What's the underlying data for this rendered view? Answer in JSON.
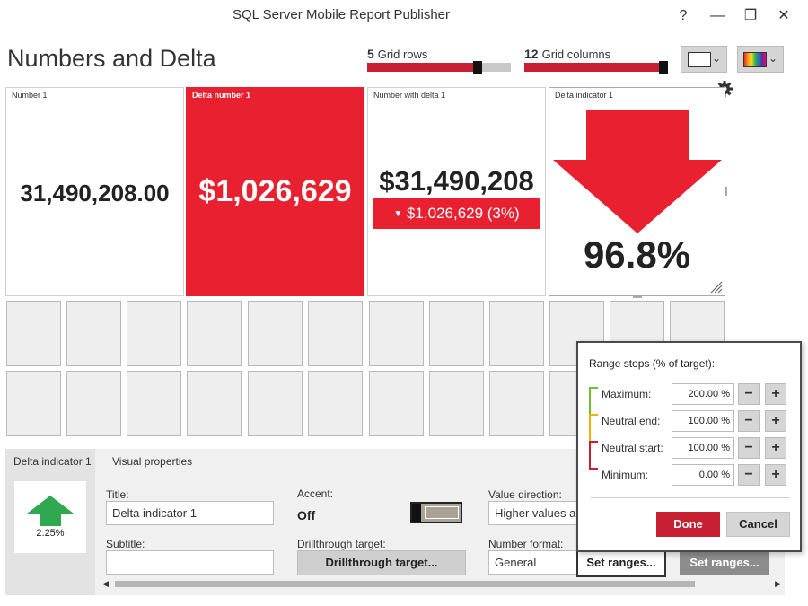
{
  "window": {
    "title": "SQL Server Mobile Report Publisher",
    "help": "?",
    "minimize": "—",
    "restore": "❐",
    "close": "✕"
  },
  "report": {
    "title": "Numbers and Delta"
  },
  "grid": {
    "rows_value": "5",
    "rows_label": "Grid rows",
    "rows_fraction": 0.8,
    "columns_value": "12",
    "columns_label": "Grid columns",
    "columns_fraction": 1.0
  },
  "toolbar": {
    "layout_icon": "layout-icon",
    "palette_icon": "color-palette-icon",
    "chevron": "⌄"
  },
  "tiles": {
    "number1": {
      "label": "Number 1",
      "value": "31,490,208.00"
    },
    "delta1": {
      "label": "Delta number 1",
      "value": "$1,026,629"
    },
    "numdelta": {
      "label": "Number with delta 1",
      "value": "$31,490,208",
      "delta": "$1,026,629 (3%)",
      "delta_arrow": "▼"
    },
    "indicator": {
      "label": "Delta indicator 1",
      "value": "96.8%",
      "direction": "down",
      "color": "#e8202f"
    }
  },
  "panel": {
    "side_title": "Delta indicator 1",
    "preview_value": "2.25%",
    "preview_direction": "up",
    "preview_color": "#2fa84f",
    "tab": "Visual properties",
    "title_label": "Title:",
    "title_value": "Delta indicator 1",
    "subtitle_label": "Subtitle:",
    "subtitle_value": "",
    "accent_label": "Accent:",
    "accent_value": "Off",
    "drill_label": "Drillthrough target:",
    "drill_button": "Drillthrough target...",
    "direction_label": "Value direction:",
    "direction_value": "Higher values are",
    "format_label": "Number format:",
    "format_value": "General",
    "set_ranges_1": "Set ranges...",
    "set_ranges_2": "Set ranges..."
  },
  "popup": {
    "heading": "Range stops (% of target):",
    "rows": [
      {
        "label": "Maximum:",
        "value": "200.00 %"
      },
      {
        "label": "Neutral end:",
        "value": "100.00 %"
      },
      {
        "label": "Neutral start:",
        "value": "100.00 %"
      },
      {
        "label": "Minimum:",
        "value": "0.00 %"
      }
    ],
    "minus": "−",
    "plus": "+",
    "done": "Done",
    "cancel": "Cancel",
    "colors": {
      "good": "#6fbe2e",
      "neutral": "#f0b400",
      "bad": "#c62032"
    }
  }
}
